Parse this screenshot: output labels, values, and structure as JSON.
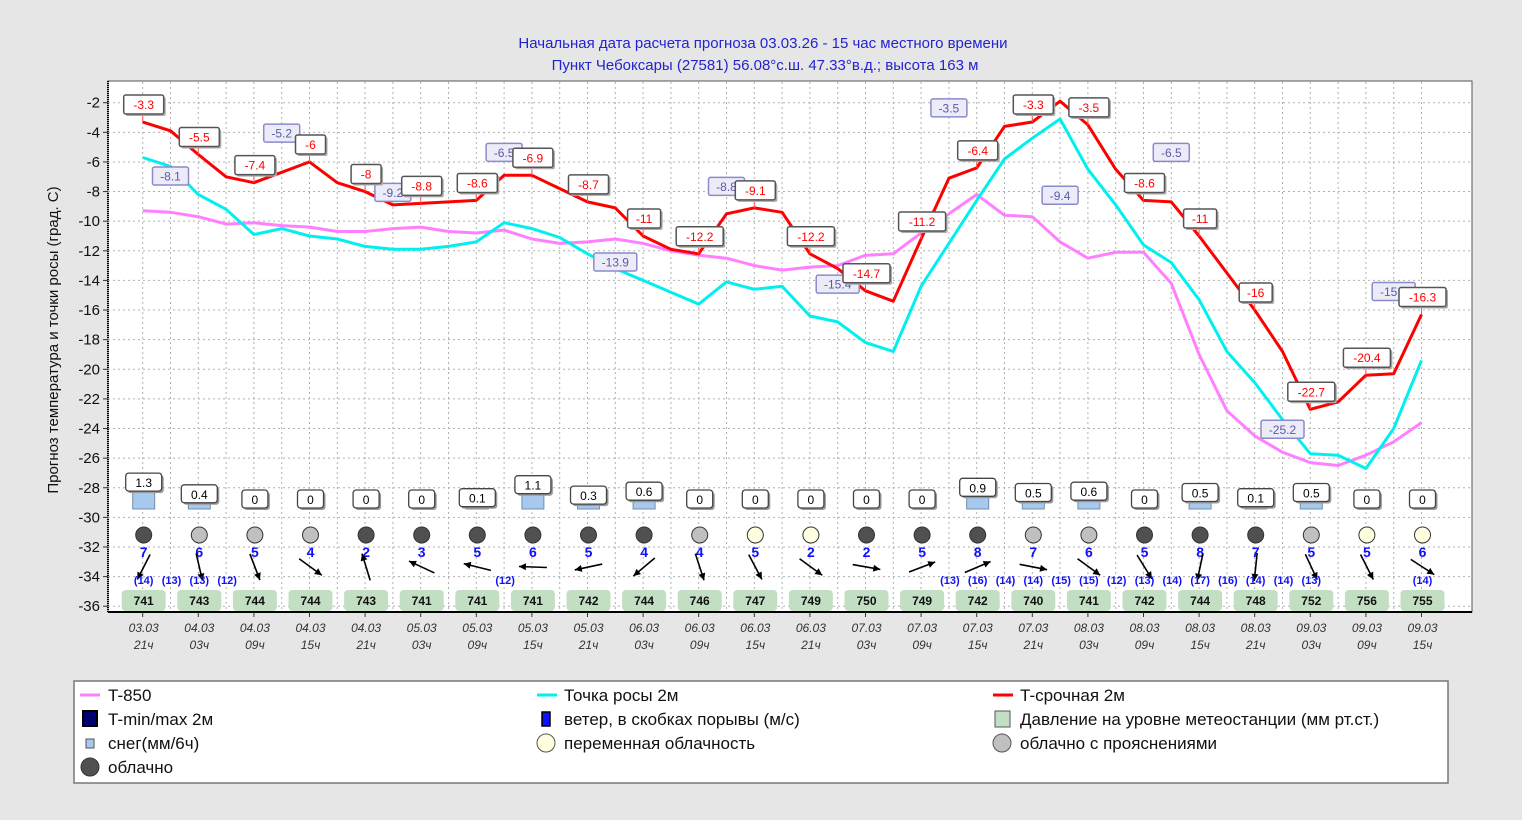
{
  "header": {
    "line1": "Начальная дата расчета прогноза 03.03.26 - 15 час местного времени",
    "line2": "Пункт Чебоксары (27581) 56.08°с.ш. 47.33°в.д.; высота 163 м"
  },
  "colors": {
    "t850": "#ff80ff",
    "dew": "#00f0f0",
    "temp": "#ff0000",
    "title": "#2323d0",
    "pressure_box": "#c3dfc3",
    "snow": "#a8c8ee",
    "cloudy": "#505050",
    "partly_cloudy": "#c0c0c0",
    "variable": "#ffffe0",
    "wind_text": "#1010ff"
  },
  "chart_data": {
    "type": "line",
    "ylabel": "Прогноз температура и точки росы (град. С)",
    "ylim": [
      -37,
      -1
    ],
    "yticks": [
      -2,
      -4,
      -6,
      -8,
      -10,
      -12,
      -14,
      -16,
      -18,
      -20,
      -22,
      -24,
      -26,
      -28,
      -30,
      -32,
      -34,
      -36
    ],
    "grid": true,
    "legend_position": "bottom",
    "x_step_hours": 3,
    "x_labels": [
      {
        "date": "03.03",
        "hour": "21ч"
      },
      {
        "date": "04.03",
        "hour": "03ч"
      },
      {
        "date": "04.03",
        "hour": "09ч"
      },
      {
        "date": "04.03",
        "hour": "15ч"
      },
      {
        "date": "04.03",
        "hour": "21ч"
      },
      {
        "date": "05.03",
        "hour": "03ч"
      },
      {
        "date": "05.03",
        "hour": "09ч"
      },
      {
        "date": "05.03",
        "hour": "15ч"
      },
      {
        "date": "05.03",
        "hour": "21ч"
      },
      {
        "date": "06.03",
        "hour": "03ч"
      },
      {
        "date": "06.03",
        "hour": "09ч"
      },
      {
        "date": "06.03",
        "hour": "15ч"
      },
      {
        "date": "06.03",
        "hour": "21ч"
      },
      {
        "date": "07.03",
        "hour": "03ч"
      },
      {
        "date": "07.03",
        "hour": "09ч"
      },
      {
        "date": "07.03",
        "hour": "15ч"
      },
      {
        "date": "07.03",
        "hour": "21ч"
      },
      {
        "date": "08.03",
        "hour": "03ч"
      },
      {
        "date": "08.03",
        "hour": "09ч"
      },
      {
        "date": "08.03",
        "hour": "15ч"
      },
      {
        "date": "08.03",
        "hour": "21ч"
      },
      {
        "date": "09.03",
        "hour": "03ч"
      },
      {
        "date": "09.03",
        "hour": "09ч"
      },
      {
        "date": "09.03",
        "hour": "15ч"
      }
    ],
    "series": [
      {
        "name": "T-850",
        "key": "t850",
        "values": [
          -9.3,
          -9.4,
          -9.7,
          -10.2,
          -10.1,
          -10.3,
          -10.4,
          -10.7,
          -10.7,
          -10.5,
          -10.4,
          -10.7,
          -10.8,
          -10.6,
          -11.2,
          -11.5,
          -11.4,
          -11.2,
          -11.5,
          -12.0,
          -12.3,
          -12.5,
          -13.0,
          -13.3,
          -13.1,
          -13.0,
          -12.3,
          -12.2,
          -10.8,
          -9.5,
          -8.2,
          -9.6,
          -9.7,
          -11.4,
          -12.5,
          -12.1,
          -12.1,
          -14.2,
          -19.0,
          -22.8,
          -24.5,
          -25.6,
          -26.3,
          -26.5,
          -25.8,
          -24.9,
          -23.6
        ]
      },
      {
        "name": "Точка росы 2м",
        "key": "dew",
        "values": [
          -5.7,
          -6.3,
          -8.2,
          -9.2,
          -10.9,
          -10.5,
          -11.0,
          -11.2,
          -11.7,
          -11.9,
          -11.9,
          -11.7,
          -11.4,
          -10.1,
          -10.5,
          -11.1,
          -12.2,
          -13.2,
          -14.0,
          -14.8,
          -15.6,
          -14.1,
          -14.6,
          -14.4,
          -16.4,
          -16.8,
          -18.2,
          -18.8,
          -14.4,
          -11.5,
          -8.6,
          -5.8,
          -4.4,
          -3.1,
          -6.5,
          -8.9,
          -11.6,
          -12.8,
          -15.3,
          -18.8,
          -20.9,
          -23.4,
          -25.7,
          -25.8,
          -26.7,
          -24.0,
          -19.4
        ]
      },
      {
        "name": "T-срочная 2м",
        "key": "temp",
        "values": [
          -3.3,
          -3.9,
          -5.5,
          -7.0,
          -7.4,
          -6.7,
          -6.0,
          -7.4,
          -8.0,
          -8.9,
          -8.8,
          -8.7,
          -8.6,
          -6.9,
          -6.9,
          -7.8,
          -8.7,
          -9.1,
          -11.0,
          -11.9,
          -12.2,
          -9.5,
          -9.1,
          -9.4,
          -12.2,
          -13.2,
          -14.7,
          -15.4,
          -11.2,
          -7.1,
          -6.4,
          -3.6,
          -3.3,
          -1.9,
          -3.5,
          -6.5,
          -8.6,
          -8.7,
          -11.0,
          -13.5,
          -16.0,
          -18.8,
          -22.7,
          -22.2,
          -20.4,
          -20.3,
          -16.3
        ]
      }
    ],
    "temp_labels": [
      {
        "i": 0,
        "text": "-3.3"
      },
      {
        "i": 2,
        "text": "-5.5"
      },
      {
        "i": 4,
        "text": "-7.4"
      },
      {
        "i": 6,
        "text": "-6"
      },
      {
        "i": 8,
        "text": "-8"
      },
      {
        "i": 10,
        "text": "-8.8"
      },
      {
        "i": 12,
        "text": "-8.6"
      },
      {
        "i": 14,
        "text": "-6.9"
      },
      {
        "i": 16,
        "text": "-8.7"
      },
      {
        "i": 18,
        "text": "-11"
      },
      {
        "i": 20,
        "text": "-12.2"
      },
      {
        "i": 22,
        "text": "-9.1"
      },
      {
        "i": 24,
        "text": "-12.2"
      },
      {
        "i": 26,
        "text": "-14.7"
      },
      {
        "i": 28,
        "text": "-11.2"
      },
      {
        "i": 30,
        "text": "-6.4"
      },
      {
        "i": 32,
        "text": "-3.3"
      },
      {
        "i": 34,
        "text": "-3.5"
      },
      {
        "i": 36,
        "text": "-8.6"
      },
      {
        "i": 38,
        "text": "-11"
      },
      {
        "i": 40,
        "text": "-16"
      },
      {
        "i": 42,
        "text": "-22.7"
      },
      {
        "i": 44,
        "text": "-20.4"
      },
      {
        "i": 46,
        "text": "-16.3"
      }
    ],
    "minmax_labels": [
      {
        "i": 1,
        "value": -8.1,
        "text": "-8.1"
      },
      {
        "i": 5,
        "value": -5.2,
        "text": "-5.2"
      },
      {
        "i": 9,
        "value": -9.2,
        "text": "-9.2"
      },
      {
        "i": 13,
        "value": -6.5,
        "text": "-6.5"
      },
      {
        "i": 17,
        "value": -13.9,
        "text": "-13.9"
      },
      {
        "i": 21,
        "value": -8.8,
        "text": "-8.8"
      },
      {
        "i": 25,
        "value": -15.4,
        "text": "-15.4"
      },
      {
        "i": 29,
        "value": -3.5,
        "text": "-3.5"
      },
      {
        "i": 33,
        "value": -9.4,
        "text": "-9.4"
      },
      {
        "i": 37,
        "value": -6.5,
        "text": "-6.5"
      },
      {
        "i": 41,
        "value": -25.2,
        "text": "-25.2"
      },
      {
        "i": 45,
        "value": -15.9,
        "text": "-15.9"
      }
    ],
    "snow": [
      "1.3",
      "0.4",
      "0",
      "0",
      "0",
      "0",
      "0.1",
      "1.1",
      "0.3",
      "0.6",
      "0",
      "0",
      "0",
      "0",
      "0",
      "0.9",
      "0.5",
      "0.6",
      "0",
      "0.5",
      "0.1",
      "0.5",
      "0",
      "0"
    ],
    "clouds": [
      "cloudy",
      "partly_cloudy",
      "partly_cloudy",
      "partly_cloudy",
      "cloudy",
      "cloudy",
      "cloudy",
      "cloudy",
      "cloudy",
      "cloudy",
      "partly_cloudy",
      "variable",
      "variable",
      "cloudy",
      "cloudy",
      "cloudy",
      "partly_cloudy",
      "partly_cloudy",
      "cloudy",
      "cloudy",
      "cloudy",
      "partly_cloudy",
      "variable",
      "variable"
    ],
    "wind_speed": [
      "7",
      "6",
      "5",
      "4",
      "2",
      "3",
      "5",
      "6",
      "5",
      "4",
      "4",
      "5",
      "2",
      "2",
      "5",
      "8",
      "7",
      "6",
      "5",
      "8",
      "7",
      "5",
      "5",
      "6"
    ],
    "wind_arrow_angle_deg": [
      117,
      77,
      69,
      36,
      -107,
      205,
      194,
      182,
      168,
      140,
      72,
      62,
      36,
      10,
      -21,
      -23,
      11,
      36,
      58,
      102,
      96,
      65,
      63,
      33
    ],
    "gusts": [
      {
        "i": 0,
        "text": "(14)"
      },
      {
        "i": 1,
        "text": "(13)"
      },
      {
        "i": 2,
        "text": "(13)"
      },
      {
        "i": 3,
        "text": "(12)"
      },
      {
        "i": 13,
        "text": "(12)"
      },
      {
        "i": 29,
        "text": "(13)"
      },
      {
        "i": 30,
        "text": "(16)"
      },
      {
        "i": 31,
        "text": "(14)"
      },
      {
        "i": 32,
        "text": "(14)"
      },
      {
        "i": 33,
        "text": "(15)"
      },
      {
        "i": 34,
        "text": "(15)"
      },
      {
        "i": 35,
        "text": "(12)"
      },
      {
        "i": 36,
        "text": "(13)"
      },
      {
        "i": 37,
        "text": "(14)"
      },
      {
        "i": 38,
        "text": "(17)"
      },
      {
        "i": 39,
        "text": "(16)"
      },
      {
        "i": 40,
        "text": "(14)"
      },
      {
        "i": 41,
        "text": "(14)"
      },
      {
        "i": 42,
        "text": "(13)"
      },
      {
        "i": 46,
        "text": "(14)"
      }
    ],
    "pressure": [
      "741",
      "743",
      "744",
      "744",
      "743",
      "741",
      "741",
      "741",
      "742",
      "744",
      "746",
      "747",
      "749",
      "750",
      "749",
      "742",
      "740",
      "741",
      "742",
      "744",
      "748",
      "752",
      "756",
      "755"
    ]
  },
  "legend": {
    "t850": "T-850",
    "dew": "Точка росы 2м",
    "temp": "T-срочная 2м",
    "minmax": "T-min/max 2м",
    "wind": "ветер, в скобках порывы (м/с)",
    "pressure": "Давление на уровне метеостанции (мм рт.ст.)",
    "snow": "снег(мм/6ч)",
    "variable": "переменная облачность",
    "partly_cloudy": "облачно с прояснениями",
    "cloudy": "облачно"
  }
}
